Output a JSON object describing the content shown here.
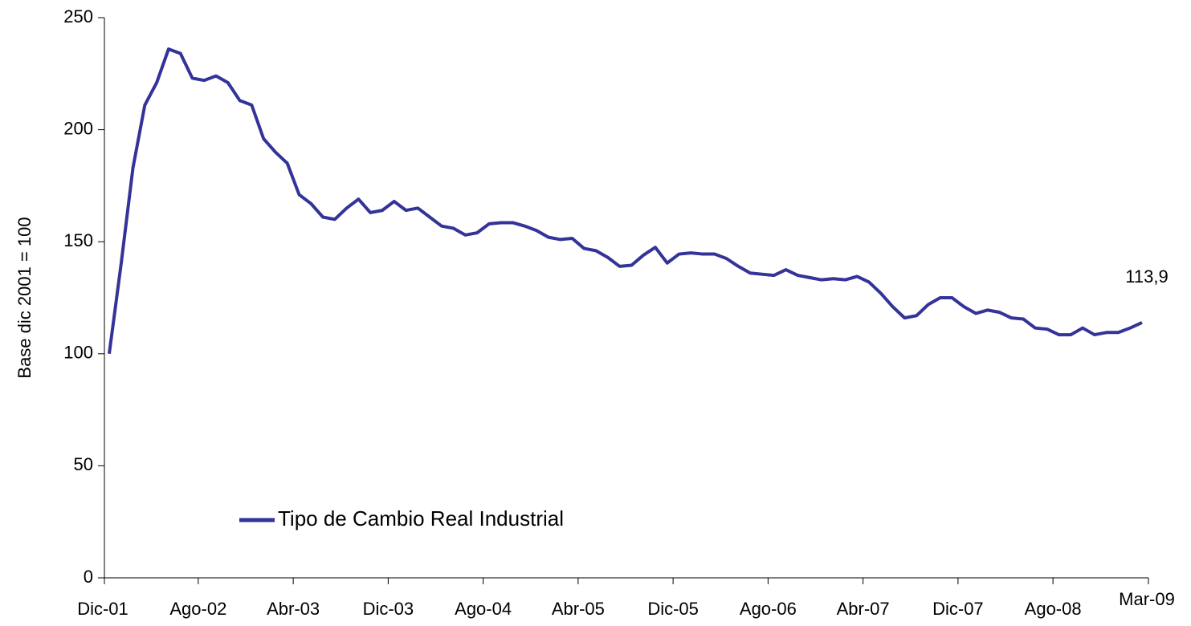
{
  "chart_data": {
    "type": "line",
    "y_label": "Base dic 2001 = 100",
    "categories": [
      "Dic-01",
      null,
      null,
      null,
      null,
      null,
      null,
      null,
      "Ago-02",
      null,
      null,
      null,
      null,
      null,
      null,
      null,
      "Abr-03",
      null,
      null,
      null,
      null,
      null,
      null,
      null,
      "Dic-03",
      null,
      null,
      null,
      null,
      null,
      null,
      null,
      "Ago-04",
      null,
      null,
      null,
      null,
      null,
      null,
      null,
      "Abr-05",
      null,
      null,
      null,
      null,
      null,
      null,
      null,
      "Dic-05",
      null,
      null,
      null,
      null,
      null,
      null,
      null,
      "Ago-06",
      null,
      null,
      null,
      null,
      null,
      null,
      null,
      "Abr-07",
      null,
      null,
      null,
      null,
      null,
      null,
      null,
      "Dic-07",
      null,
      null,
      null,
      null,
      null,
      null,
      null,
      "Ago-08",
      null,
      null,
      null,
      null,
      null,
      null,
      "Mar-09"
    ],
    "series": [
      {
        "name": "Tipo de Cambio Real Industrial",
        "color": "#333399",
        "values": [
          100,
          140,
          183,
          211,
          221,
          236,
          234,
          223,
          222,
          224,
          221,
          213,
          211,
          196,
          190,
          185,
          171,
          167,
          161,
          160,
          165,
          169,
          163,
          164,
          168,
          164,
          165,
          161,
          157,
          156,
          153,
          154,
          158,
          158.5,
          158.5,
          157,
          155,
          152,
          151,
          151.5,
          147,
          146,
          143,
          139,
          139.5,
          144,
          147.5,
          140.5,
          144.5,
          145,
          144.5,
          144.5,
          142.5,
          139,
          136,
          135.5,
          135,
          137.5,
          135,
          134,
          133,
          133.5,
          133,
          134.5,
          132,
          127,
          121,
          116,
          117,
          122,
          125,
          125,
          121,
          118,
          119.5,
          118.5,
          116,
          115.5,
          111.5,
          111,
          108.5,
          108.5,
          111.5,
          108.5,
          109.5,
          109.5,
          111.5,
          113.9
        ],
        "value_labels": [
          null,
          null,
          null,
          null,
          null,
          null,
          null,
          null,
          null,
          null,
          null,
          null,
          null,
          null,
          null,
          null,
          null,
          null,
          null,
          null,
          null,
          null,
          null,
          null,
          null,
          null,
          null,
          null,
          null,
          null,
          null,
          null,
          null,
          null,
          null,
          null,
          null,
          null,
          null,
          null,
          null,
          null,
          null,
          null,
          null,
          null,
          null,
          null,
          null,
          null,
          null,
          null,
          null,
          null,
          null,
          null,
          null,
          null,
          null,
          null,
          null,
          null,
          null,
          null,
          null,
          null,
          null,
          null,
          null,
          null,
          null,
          null,
          null,
          null,
          null,
          null,
          null,
          null,
          null,
          null,
          null,
          null,
          null,
          null,
          null,
          null,
          null,
          "113,9"
        ]
      }
    ],
    "ylim": [
      0,
      250
    ],
    "yticks": [
      0,
      50,
      100,
      150,
      200,
      250
    ],
    "grid": false,
    "legend": "lower left"
  }
}
